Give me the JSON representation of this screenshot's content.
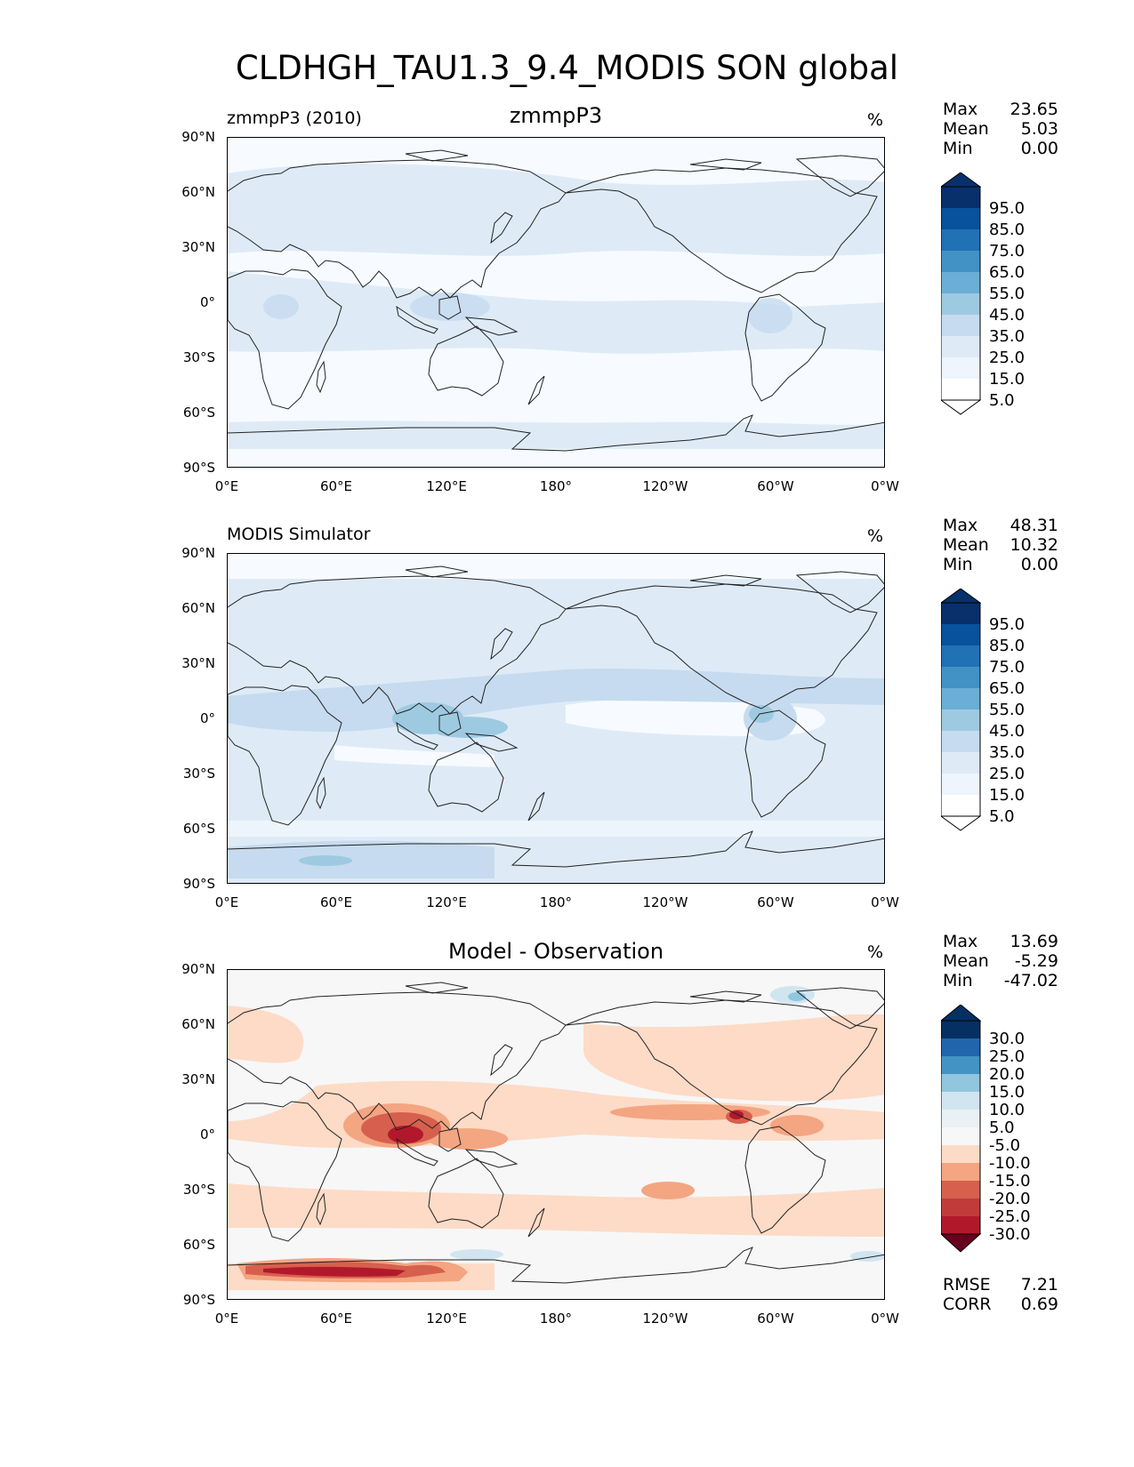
{
  "title": "CLDHGH_TAU1.3_9.4_MODIS SON global",
  "axes": {
    "lat_labels": [
      "90°N",
      "60°N",
      "30°N",
      "0°",
      "30°S",
      "60°S",
      "90°S"
    ],
    "lon_labels": [
      "0°E",
      "60°E",
      "120°E",
      "180°",
      "120°W",
      "60°W",
      "0°W"
    ]
  },
  "panels": {
    "model": {
      "left_title": "zmmpP3 (2010)",
      "center_title": "zmmpP3",
      "units": "%",
      "stats": {
        "max_label": "Max",
        "max": "23.65",
        "mean_label": "Mean",
        "mean": "5.03",
        "min_label": "Min",
        "min": "0.00"
      },
      "colorbar_levels": [
        "95.0",
        "85.0",
        "75.0",
        "65.0",
        "55.0",
        "45.0",
        "35.0",
        "25.0",
        "15.0",
        "5.0"
      ]
    },
    "obs": {
      "left_title": "MODIS Simulator",
      "units": "%",
      "stats": {
        "max_label": "Max",
        "max": "48.31",
        "mean_label": "Mean",
        "mean": "10.32",
        "min_label": "Min",
        "min": "0.00"
      },
      "colorbar_levels": [
        "95.0",
        "85.0",
        "75.0",
        "65.0",
        "55.0",
        "45.0",
        "35.0",
        "25.0",
        "15.0",
        "5.0"
      ]
    },
    "diff": {
      "center_title": "Model - Observation",
      "units": "%",
      "stats": {
        "max_label": "Max",
        "max": "13.69",
        "mean_label": "Mean",
        "mean": "-5.29",
        "min_label": "Min",
        "min": "-47.02"
      },
      "colorbar_levels": [
        "30.0",
        "25.0",
        "20.0",
        "15.0",
        "10.0",
        "5.0",
        "-5.0",
        "-10.0",
        "-15.0",
        "-20.0",
        "-25.0",
        "-30.0"
      ],
      "rmse_label": "RMSE",
      "rmse": "7.21",
      "corr_label": "CORR",
      "corr": "0.69"
    }
  },
  "colors": {
    "blues": [
      "#f7fbff",
      "#deebf7",
      "#c6dbef",
      "#9ecae1",
      "#6baed6",
      "#4292c6",
      "#2171b5",
      "#08519c",
      "#08306b"
    ],
    "diverging": [
      "#67001f",
      "#b2182b",
      "#d6604d",
      "#f4a582",
      "#fddbc7",
      "#f7f7f7",
      "#d1e5f0",
      "#92c5de",
      "#4393c3",
      "#2166ac",
      "#053061"
    ]
  }
}
